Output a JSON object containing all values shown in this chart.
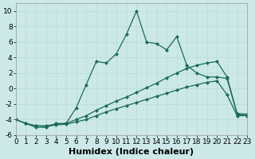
{
  "xlabel": "Humidex (Indice chaleur)",
  "background_color": "#cce8e8",
  "line_color": "#1a6b5a",
  "xlim": [
    0,
    23
  ],
  "ylim": [
    -6,
    11
  ],
  "xticks": [
    0,
    1,
    2,
    3,
    4,
    5,
    6,
    7,
    8,
    9,
    10,
    11,
    12,
    13,
    14,
    15,
    16,
    17,
    18,
    19,
    20,
    21,
    22,
    23
  ],
  "yticks": [
    -6,
    -4,
    -2,
    0,
    2,
    4,
    6,
    8,
    10
  ],
  "series_main_x": [
    0,
    1,
    2,
    3,
    4,
    5,
    6,
    7,
    8,
    9,
    10,
    11,
    12,
    13,
    14,
    15,
    16,
    17,
    18,
    19,
    20,
    21,
    22,
    23
  ],
  "series_main_y": [
    -4.0,
    -4.5,
    -5.0,
    -5.0,
    -4.5,
    -4.5,
    -2.5,
    0.5,
    3.5,
    3.3,
    4.5,
    7.0,
    10.0,
    6.0,
    5.8,
    5.0,
    6.7,
    3.0,
    2.0,
    1.5,
    1.5,
    1.3,
    -3.3,
    -3.5
  ],
  "series_mid_x": [
    0,
    1,
    2,
    3,
    4,
    5,
    6,
    7,
    8,
    9,
    10,
    11,
    12,
    13,
    14,
    15,
    16,
    17,
    18,
    19,
    20,
    21,
    22,
    23
  ],
  "series_mid_y": [
    -4.0,
    -4.5,
    -4.8,
    -4.8,
    -4.6,
    -4.5,
    -4.0,
    -3.5,
    -2.8,
    -2.2,
    -1.6,
    -1.1,
    -0.5,
    0.1,
    0.7,
    1.4,
    2.0,
    2.6,
    3.0,
    3.3,
    3.5,
    1.5,
    -3.2,
    -3.3
  ],
  "series_bot_x": [
    0,
    1,
    2,
    3,
    4,
    5,
    6,
    7,
    8,
    9,
    10,
    11,
    12,
    13,
    14,
    15,
    16,
    17,
    18,
    19,
    20,
    21,
    22,
    23
  ],
  "series_bot_y": [
    -4.0,
    -4.5,
    -4.8,
    -4.9,
    -4.7,
    -4.6,
    -4.3,
    -4.0,
    -3.5,
    -3.0,
    -2.6,
    -2.2,
    -1.8,
    -1.4,
    -1.0,
    -0.6,
    -0.2,
    0.2,
    0.5,
    0.8,
    1.0,
    -0.8,
    -3.5,
    -3.5
  ],
  "grid_color": "#b8dcdc",
  "marker": "D",
  "marker_size": 2.5,
  "line_width": 0.9,
  "xlabel_fontsize": 8,
  "tick_fontsize": 6.5
}
